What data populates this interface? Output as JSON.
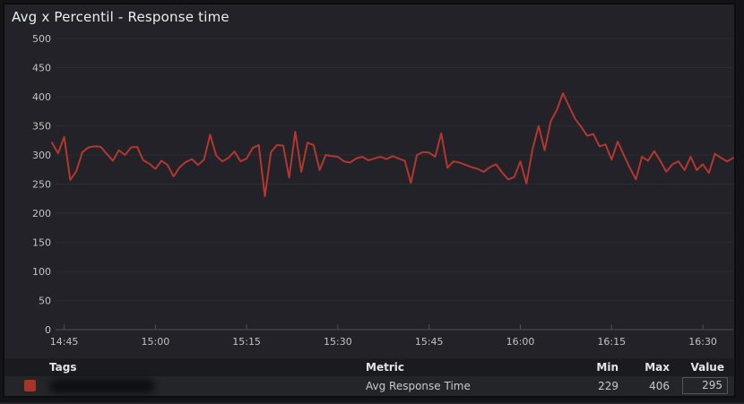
{
  "panel": {
    "title": "Avg x Percentil - Response time"
  },
  "chart_data": {
    "type": "line",
    "title": "Avg x Percentil - Response time",
    "xlabel": "",
    "ylabel": "",
    "ylim": [
      0,
      500
    ],
    "y_ticks": [
      0,
      50,
      100,
      150,
      200,
      250,
      300,
      350,
      400,
      450,
      500
    ],
    "x_ticks": [
      "14:45",
      "15:00",
      "15:15",
      "15:30",
      "15:45",
      "16:00",
      "16:15",
      "16:30"
    ],
    "grid": true,
    "legend_position": "bottom-table",
    "series": [
      {
        "name": "Avg Response Time",
        "color": "#b2382f",
        "start_time": "14:43",
        "end_time": "16:35",
        "interval_minutes": 1,
        "min": 229,
        "max": 406,
        "current": 295,
        "values": [
          321,
          303,
          331,
          257,
          272,
          305,
          313,
          315,
          314,
          302,
          290,
          308,
          300,
          313,
          314,
          291,
          285,
          276,
          290,
          283,
          263,
          279,
          288,
          293,
          283,
          292,
          335,
          299,
          289,
          295,
          306,
          289,
          294,
          312,
          317,
          229,
          305,
          317,
          316,
          261,
          340,
          271,
          321,
          317,
          274,
          300,
          298,
          297,
          289,
          287,
          294,
          297,
          291,
          294,
          297,
          293,
          298,
          294,
          290,
          252,
          300,
          305,
          304,
          297,
          337,
          278,
          289,
          287,
          283,
          279,
          276,
          271,
          279,
          284,
          270,
          258,
          262,
          289,
          251,
          310,
          350,
          308,
          358,
          377,
          406,
          384,
          362,
          348,
          333,
          336,
          315,
          318,
          292,
          323,
          300,
          278,
          258,
          297,
          290,
          307,
          290,
          271,
          284,
          289,
          274,
          297,
          274,
          284,
          269,
          302,
          295,
          289,
          295
        ]
      }
    ],
    "style": {
      "background": "#222228",
      "grid_color": "#2c2d33",
      "axis_color": "#4d4e52",
      "tick_label_color": "#c2c3c5"
    }
  },
  "legend_table": {
    "headers": {
      "tags": "Tags",
      "metric": "Metric",
      "min": "Min",
      "max": "Max",
      "value": "Value"
    },
    "rows": [
      {
        "tag_redacted": true,
        "swatch_color": "#a5342a",
        "metric": "Avg Response Time",
        "min": "229",
        "max": "406",
        "value": "295"
      }
    ]
  }
}
